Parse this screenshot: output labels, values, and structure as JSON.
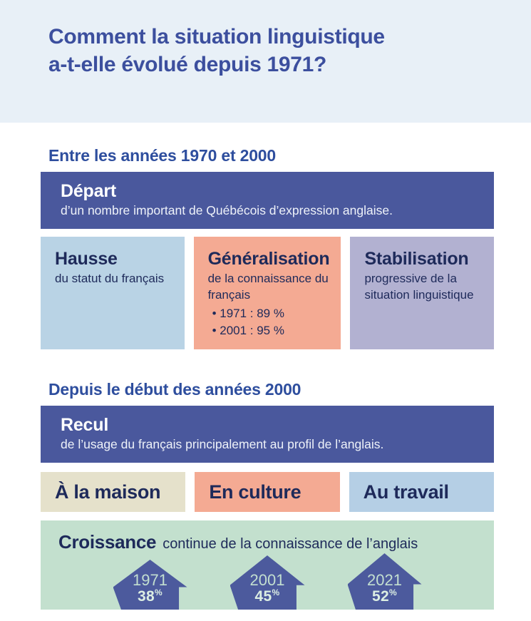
{
  "header": {
    "title_line1": "Comment la situation linguistique",
    "title_line2": "a-t-elle évolué depuis 1971?"
  },
  "section1": {
    "heading": "Entre les années 1970 et 2000",
    "banner": {
      "title": "Départ",
      "description": "d’un nombre important de Québécois d’expression anglaise."
    },
    "cards": [
      {
        "title": "Hausse",
        "description": "du statut du français"
      },
      {
        "title": "Généralisation",
        "description": "de la connaissance du français",
        "bullets": [
          "• 1971 : 89 %",
          "• 2001 : 95 %"
        ]
      },
      {
        "title": "Stabilisation",
        "description": "progressive de la situation linguistique"
      }
    ]
  },
  "section2": {
    "heading": "Depuis le début des années 2000",
    "banner": {
      "title": "Recul",
      "description": "de l’usage du français principalement au profil de l’anglais."
    },
    "labels": [
      "À la maison",
      "En culture",
      "Au travail"
    ],
    "growth": {
      "title": "Croissance",
      "subtitle": "continue de la connaissance de l’anglais",
      "arrows": [
        {
          "year": "1971",
          "value": "38",
          "unit": "%"
        },
        {
          "year": "2001",
          "value": "45",
          "unit": "%"
        },
        {
          "year": "2021",
          "value": "52",
          "unit": "%"
        }
      ]
    }
  },
  "colors": {
    "header_band": "#e8f0f7",
    "title_blue": "#3c4f9e",
    "heading_blue": "#2e4e9e",
    "banner_blue": "#4a589d",
    "navy_text": "#1e2a5a",
    "card_blue": "#b9d3e5",
    "card_salmon": "#f4aa93",
    "card_purple": "#b2b1d1",
    "label_beige": "#e5e1cb",
    "label_blue": "#b5cfe5",
    "growth_green": "#c3e0ce",
    "arrow_blue": "#4c5a9d",
    "arrow_text_light": "#dceee3"
  }
}
